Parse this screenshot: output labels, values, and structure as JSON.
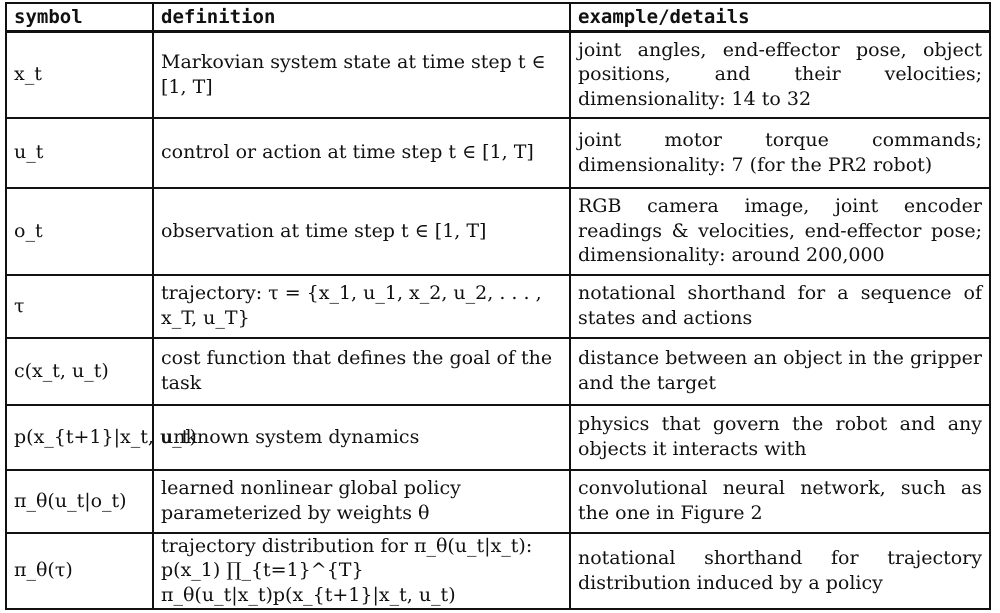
{
  "headers": {
    "symbol": "symbol",
    "definition": "definition",
    "example": "example/details"
  },
  "rows": [
    {
      "symbol": "x_t",
      "definition": "Markovian system state at time step t ∈ [1, T]",
      "example": "joint angles, end-effector pose, object positions, and their velocities; dimensionality: 14 to 32"
    },
    {
      "symbol": "u_t",
      "definition": "control or action at time step t ∈ [1, T]",
      "example": "joint motor torque commands; dimensionality: 7 (for the PR2 robot)"
    },
    {
      "symbol": "o_t",
      "definition": "observation at time step t ∈ [1, T]",
      "example": "RGB camera image, joint encoder readings & velocities, end-effector pose; dimensionality: around 200,000"
    },
    {
      "symbol": "τ",
      "definition": "trajectory: τ = {x_1, u_1, x_2, u_2, . . . , x_T, u_T}",
      "example": "notational shorthand for a sequence of states and actions"
    },
    {
      "symbol": "c(x_t, u_t)",
      "definition": "cost function that defines the goal of the task",
      "example": "distance between an object in the gripper and the target"
    },
    {
      "symbol": "p(x_{t+1}|x_t, u_t)",
      "definition": "unknown system dynamics",
      "example": "physics that govern the robot and any objects it interacts with"
    },
    {
      "symbol": "π_θ(u_t|o_t)",
      "definition": "learned nonlinear global policy parameterized by weights θ",
      "example": "convolutional neural network, such as the one in Figure 2"
    },
    {
      "symbol": "π_θ(τ)",
      "definition": "trajectory distribution for π_θ(u_t|x_t): p(x_1) ∏_{t=1}^{T} π_θ(u_t|x_t)p(x_{t+1}|x_t, u_t)",
      "example": "notational shorthand for trajectory distribution induced by a policy"
    }
  ]
}
